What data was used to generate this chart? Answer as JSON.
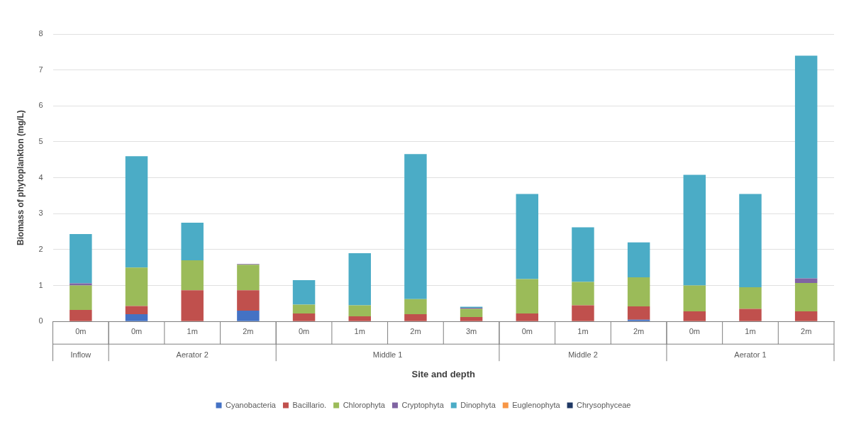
{
  "chart_data": {
    "type": "bar",
    "stacked": true,
    "xlabel": "Site and depth",
    "ylabel": "Biomass of phytoplankton (mg/L)",
    "categories": [
      "0m",
      "0m",
      "1m",
      "2m",
      "0m",
      "1m",
      "2m",
      "3m",
      "0m",
      "1m",
      "2m",
      "0m",
      "1m",
      "2m"
    ],
    "annotations": [
      "Inflow",
      "Aerator 2",
      "Middle 1",
      "Middle 2",
      "Aerator 1"
    ],
    "series": [
      {
        "name": "Cyanobacteria",
        "color": "#4472c4",
        "values": [
          0,
          0.2,
          0,
          0.3,
          0,
          0,
          0,
          0,
          0,
          0,
          0.05,
          0,
          0,
          0
        ]
      },
      {
        "name": "Bacillario.",
        "color": "#c0504d",
        "values": [
          0.32,
          0.23,
          0.87,
          0.57,
          0.22,
          0.14,
          0.2,
          0.12,
          0.22,
          0.45,
          0.37,
          0.28,
          0.35,
          0.28
        ]
      },
      {
        "name": "Chlorophyta",
        "color": "#9bbb59",
        "values": [
          0.68,
          1.07,
          0.83,
          0.71,
          0.25,
          0.31,
          0.42,
          0.23,
          0.96,
          0.65,
          0.81,
          0.72,
          0.6,
          0.79
        ]
      },
      {
        "name": "Cryptophyta",
        "color": "#8064a2",
        "values": [
          0.06,
          0,
          0,
          0.02,
          0,
          0,
          0,
          0.03,
          0,
          0,
          0,
          0,
          0,
          0.13
        ]
      },
      {
        "name": "Dinophyta",
        "color": "#4bacc6",
        "values": [
          1.37,
          3.1,
          1.05,
          0,
          0.68,
          1.45,
          4.04,
          0.03,
          2.37,
          1.52,
          0.97,
          3.08,
          2.6,
          6.2
        ]
      },
      {
        "name": "Euglenophyta",
        "color": "#f79646",
        "values": [
          0,
          0,
          0,
          0,
          0,
          0,
          0,
          0,
          0,
          0,
          0,
          0,
          0,
          0
        ]
      },
      {
        "name": "Chrysophyceae",
        "color": "#1f3864",
        "values": [
          0,
          0,
          0,
          0,
          0,
          0,
          0,
          0,
          0,
          0,
          0,
          0,
          0,
          0
        ]
      }
    ],
    "ylim": [
      0,
      8
    ],
    "yticks": [
      0,
      1,
      2,
      3,
      4,
      5,
      6,
      7,
      8
    ],
    "grid": "y",
    "legend": "bottom"
  }
}
